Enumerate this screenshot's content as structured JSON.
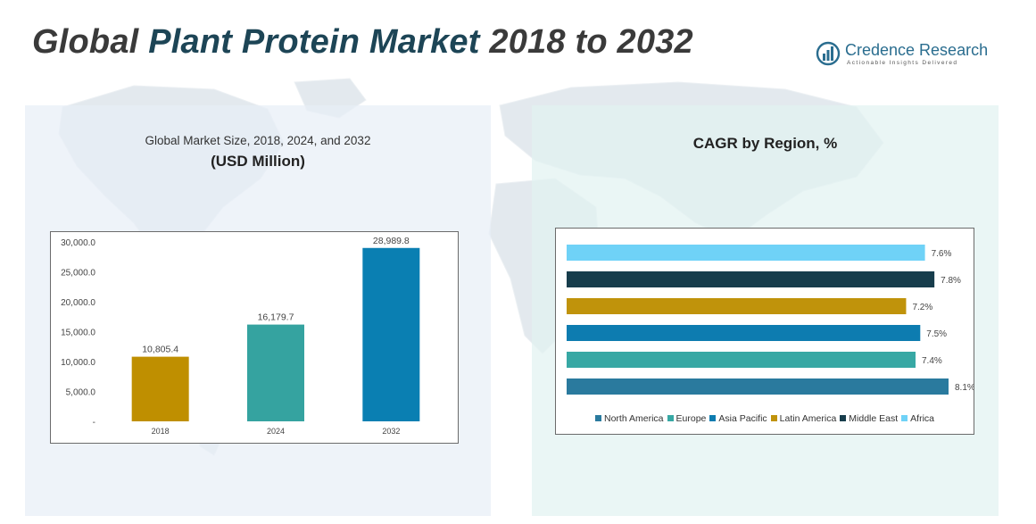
{
  "header": {
    "title_part1": "Global ",
    "title_part2": "Plant Protein Market",
    "title_part3": " 2018 to 2032"
  },
  "logo": {
    "name": "Credence Research",
    "tagline": "Actionable Insights Delivered"
  },
  "colors": {
    "title_accent": "#1d4556",
    "bar_2018": "#bf8f00",
    "bar_2024": "#35a3a0",
    "bar_2032": "#0a7fb2",
    "north_america": "#2a7a9e",
    "europe": "#37a8a4",
    "asia_pacific": "#0d7cb0",
    "latin_america": "#c0930b",
    "middle_east": "#173d4c",
    "africa": "#6fd2f7"
  },
  "chart_data": [
    {
      "type": "bar",
      "subtitle": "Global Market Size, 2018, 2024, and 2032",
      "title": "(USD Million)",
      "categories": [
        "2018",
        "2024",
        "2032"
      ],
      "values": [
        10805.4,
        16179.7,
        28989.8
      ],
      "value_labels": [
        "10,805.4",
        "16,179.7",
        "28,989.8"
      ],
      "colors": [
        "#bf8f00",
        "#35a3a0",
        "#0a7fb2"
      ],
      "ylim": [
        0,
        30000
      ],
      "yticks": [
        0,
        5000,
        10000,
        15000,
        20000,
        25000,
        30000
      ],
      "ytick_labels": [
        "-",
        "5,000.0",
        "10,000.0",
        "15,000.0",
        "20,000.0",
        "25,000.0",
        "30,000.0"
      ],
      "grid": false
    },
    {
      "type": "bar",
      "orientation": "horizontal",
      "title": "CAGR by Region, %",
      "categories": [
        "North America",
        "Europe",
        "Asia Pacific",
        "Latin America",
        "Middle East",
        "Africa"
      ],
      "values": [
        8.1,
        7.4,
        7.5,
        7.2,
        7.8,
        7.6
      ],
      "value_labels": [
        "8.1%",
        "7.4%",
        "7.5%",
        "7.2%",
        "7.8%",
        "7.6%"
      ],
      "colors": [
        "#2a7a9e",
        "#37a8a4",
        "#0d7cb0",
        "#c0930b",
        "#173d4c",
        "#6fd2f7"
      ],
      "axis_visible": false,
      "legend_position": "bottom",
      "grid": false
    }
  ]
}
